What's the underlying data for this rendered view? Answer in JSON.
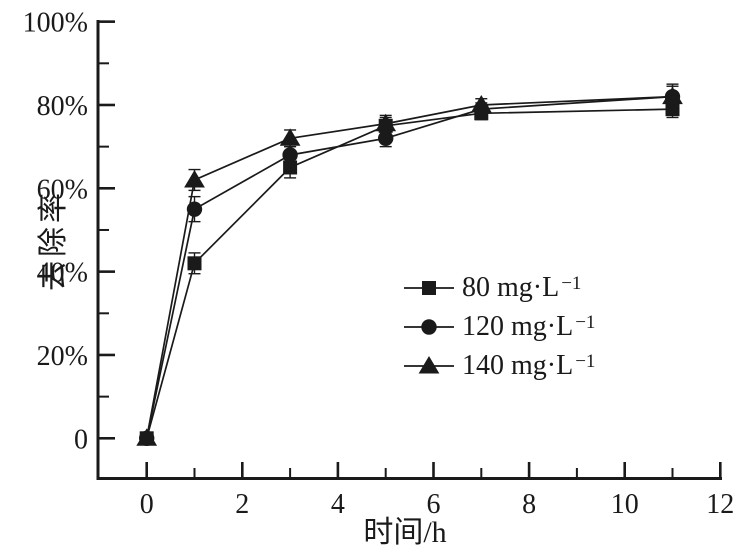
{
  "figure": {
    "background_color": "#ffffff",
    "ink_color": "#1a1a1a"
  },
  "chart_data": {
    "type": "line",
    "title": "",
    "xlabel": "时间/h",
    "ylabel": "去除率",
    "y_unit": "%",
    "x_unit": "h",
    "xlim": [
      -1,
      12
    ],
    "ylim": [
      0,
      100
    ],
    "grid": false,
    "x_major_ticks": [
      0,
      2,
      4,
      6,
      8,
      10,
      12
    ],
    "x_minor_ticks": [
      1,
      3,
      5,
      7,
      9,
      11
    ],
    "x_tick_labels": [
      "0",
      "2",
      "4",
      "6",
      "8",
      "10",
      "12"
    ],
    "y_major_ticks": [
      0,
      20,
      40,
      60,
      80,
      100
    ],
    "y_minor_ticks": [
      10,
      30,
      50,
      70,
      90
    ],
    "y_tick_labels": [
      "0",
      "20%",
      "40%",
      "60%",
      "80%",
      "100%"
    ],
    "x": [
      0,
      1,
      3,
      5,
      7,
      11
    ],
    "series": [
      {
        "name": "80 mg·L⁻¹",
        "marker": "square",
        "values": [
          0,
          42,
          65,
          75,
          78,
          79
        ],
        "errors": [
          0,
          2.5,
          2.5,
          2,
          1.5,
          2
        ]
      },
      {
        "name": "120 mg·L⁻¹",
        "marker": "circle",
        "values": [
          0,
          55,
          68,
          72,
          79,
          82
        ],
        "errors": [
          0,
          3,
          2,
          2,
          1.5,
          2.5
        ]
      },
      {
        "name": "140 mg·L⁻¹",
        "marker": "triangle",
        "values": [
          0,
          62,
          72,
          75.5,
          80,
          82
        ],
        "errors": [
          0,
          2.5,
          2,
          2,
          1.5,
          3
        ]
      }
    ],
    "legend": {
      "position": "center-right",
      "entries": [
        {
          "marker": "square",
          "text": "80 mg·L",
          "superscript": "−1"
        },
        {
          "marker": "circle",
          "text": "120 mg·L",
          "superscript": "−1"
        },
        {
          "marker": "triangle",
          "text": "140 mg·L",
          "superscript": "−1"
        }
      ]
    }
  }
}
